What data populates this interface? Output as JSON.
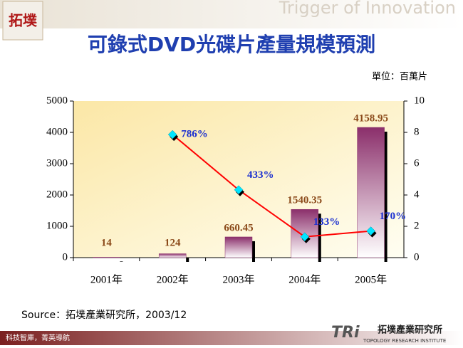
{
  "header": {
    "logo": "拓墣",
    "slogan": "Trigger of Innovation"
  },
  "chart_data": {
    "type": "bar",
    "title": "可錄式DVD光碟片產量規模預測",
    "unit_label": "單位：百萬片",
    "categories": [
      "2001年",
      "2002年",
      "2003年",
      "2004年",
      "2005年"
    ],
    "series": [
      {
        "type": "bar",
        "color": "#8b2f6b",
        "values": [
          14,
          124,
          660.45,
          1540.35,
          4158.95
        ]
      },
      {
        "type": "line",
        "axis": "y2",
        "color": "#ff0000",
        "values": [
          null,
          7.86,
          4.33,
          1.33,
          1.7
        ],
        "value_labels": [
          null,
          "786%",
          "433%",
          "133%",
          "170%"
        ]
      }
    ],
    "ylim": [
      0,
      5000
    ],
    "yticks": [
      0,
      1000,
      2000,
      3000,
      4000,
      5000
    ],
    "y2lim": [
      0,
      10
    ],
    "y2ticks": [
      0,
      2,
      4,
      6,
      8,
      10
    ],
    "source": "Source：拓墣產業研究所，2003/12"
  },
  "footer": {
    "slogan": "科技智庫，菁英導航",
    "brand": "TRi",
    "org": "拓墣產業研究所",
    "org_en": "TOPOLOGY RESEARCH INSTITUTE"
  }
}
